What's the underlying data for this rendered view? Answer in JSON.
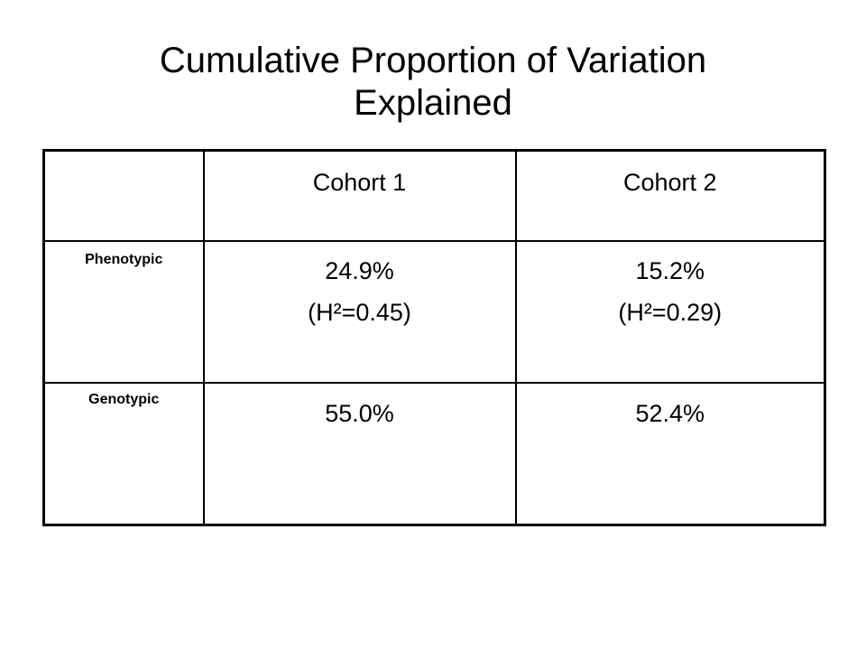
{
  "title": {
    "line1": "Cumulative Proportion of Variation",
    "line2": "Explained"
  },
  "table": {
    "header": {
      "corner": "",
      "cohort1": "Cohort 1",
      "cohort2": "Cohort 2"
    },
    "rows": [
      {
        "label": "Phenotypic",
        "cohort1": {
          "value": "24.9%",
          "note": "(H²=0.45)"
        },
        "cohort2": {
          "value": "15.2%",
          "note": "(H²=0.29)"
        }
      },
      {
        "label": "Genotypic",
        "cohort1": {
          "value": "55.0%"
        },
        "cohort2": {
          "value": "52.4%"
        }
      }
    ]
  }
}
